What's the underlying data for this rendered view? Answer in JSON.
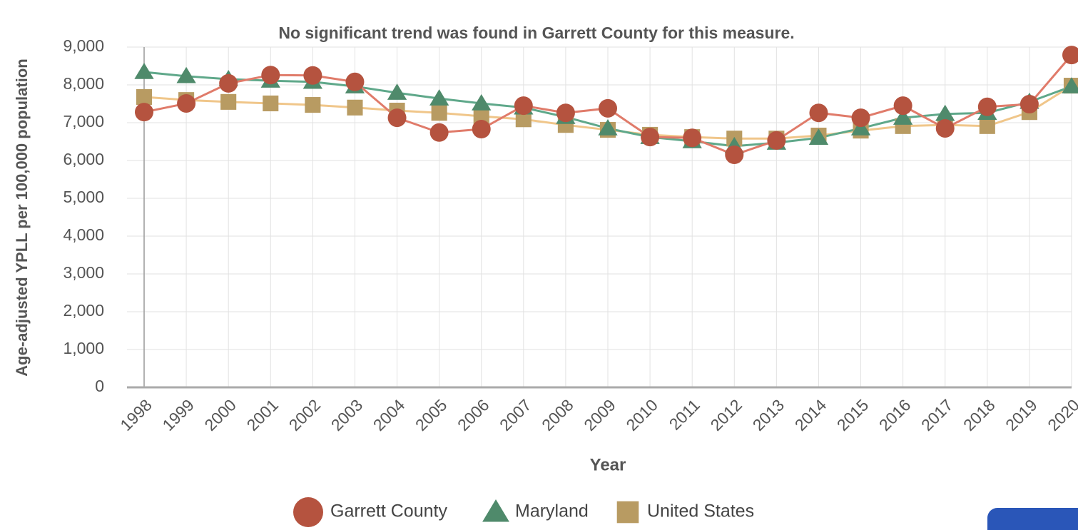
{
  "chart_data": {
    "type": "line",
    "subtitle": "No significant trend was found in Garrett County for this measure.",
    "y_label": "Age-adjusted YPLL per 100,000 population",
    "x_label": "Year",
    "categories": [
      "1998",
      "1999",
      "2000",
      "2001",
      "2002",
      "2003",
      "2004",
      "2005",
      "2006",
      "2007",
      "2008",
      "2009",
      "2010",
      "2011",
      "2012",
      "2013",
      "2014",
      "2015",
      "2016",
      "2017",
      "2018",
      "2019",
      "2020"
    ],
    "series": [
      {
        "name": "Garrett County",
        "color": "#b5533f",
        "line_color": "#e07b6a",
        "marker": "circle",
        "values": [
          7280,
          7510,
          8040,
          8260,
          8250,
          8080,
          7130,
          6740,
          6830,
          7450,
          7260,
          7380,
          6620,
          6600,
          6150,
          6530,
          7260,
          7130,
          7450,
          6850,
          7420,
          7490,
          8790
        ]
      },
      {
        "name": "Maryland",
        "color": "#4f8a6b",
        "line_color": "#5fa88a",
        "marker": "triangle",
        "values": [
          8340,
          8230,
          8150,
          8110,
          8080,
          7960,
          7790,
          7640,
          7510,
          7400,
          7150,
          6850,
          6620,
          6510,
          6380,
          6470,
          6600,
          6850,
          7130,
          7230,
          7260,
          7550,
          7960
        ]
      },
      {
        "name": "United States",
        "color": "#b89b62",
        "line_color": "#f0c68a",
        "marker": "square",
        "values": [
          7680,
          7600,
          7550,
          7510,
          7470,
          7400,
          7320,
          7260,
          7170,
          7090,
          6940,
          6810,
          6680,
          6620,
          6580,
          6580,
          6660,
          6790,
          6910,
          6940,
          6910,
          7280,
          7980
        ]
      }
    ],
    "ylim": [
      0,
      9000
    ],
    "yticks": [
      0,
      {
        "value": 1000,
        "label": "1,000"
      },
      {
        "value": 2000,
        "label": "2,000"
      },
      {
        "value": 3000,
        "label": "3,000"
      },
      {
        "value": 4000,
        "label": "4,000"
      },
      {
        "value": 5000,
        "label": "5,000"
      },
      {
        "value": 6000,
        "label": "6,000"
      },
      {
        "value": 7000,
        "label": "7,000"
      },
      {
        "value": 8000,
        "label": "8,000"
      },
      {
        "value": 9000,
        "label": "9,000"
      }
    ],
    "grid": true,
    "legend": "bottom"
  }
}
